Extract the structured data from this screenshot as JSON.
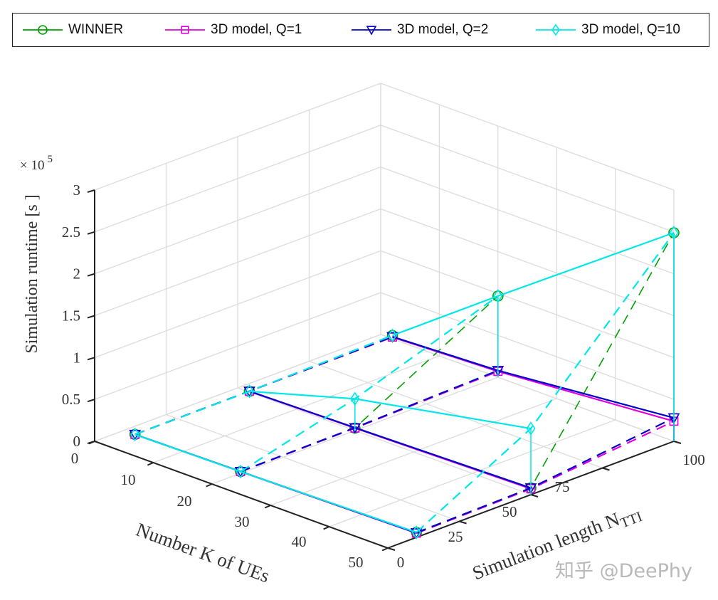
{
  "chart_data": {
    "type": "line3d",
    "title": "",
    "xlabel": "Number K of UEs",
    "ylabel_main": "Simulation length N",
    "ylabel_sub": "TTI",
    "zlabel": "Simulation runtime [s ]",
    "z_multiplier": "× 10",
    "z_multiplier_exp": "5",
    "xlim": [
      0,
      50
    ],
    "ylim": [
      0,
      100
    ],
    "zlim": [
      0,
      300000
    ],
    "x_ticks": [
      "0",
      "10",
      "20",
      "30",
      "40",
      "50"
    ],
    "y_ticks": [
      "0",
      "25",
      "50",
      "75",
      "100"
    ],
    "z_ticks": [
      "0",
      "0.5",
      "1",
      "1.5",
      "2",
      "2.5",
      "3"
    ],
    "grid": true,
    "legend_position": "top-outside",
    "K": [
      2,
      20,
      50
    ],
    "N": [
      10,
      50,
      100
    ],
    "series": [
      {
        "name": "WINNER",
        "color": "#00a000",
        "marker": "circle",
        "z_by_N": [
          [
            500,
            2000,
            6000
          ],
          [
            1000,
            3000,
            8000
          ],
          [
            4000,
            97000,
            249000
          ]
        ]
      },
      {
        "name": "3D model, Q=1",
        "color": "#e000e0",
        "marker": "square",
        "z_by_N": [
          [
            500,
            2000,
            5000
          ],
          [
            1000,
            3000,
            7000
          ],
          [
            2000,
            7000,
            24000
          ]
        ]
      },
      {
        "name": "3D model, Q=2",
        "color": "#0000c8",
        "marker": "triangle-down",
        "z_by_N": [
          [
            600,
            2200,
            5500
          ],
          [
            1200,
            3500,
            8000
          ],
          [
            2500,
            8000,
            28000
          ]
        ]
      },
      {
        "name": "3D model, Q=10",
        "color": "#00e8e8",
        "marker": "diamond",
        "z_by_N": [
          [
            500,
            2000,
            6000
          ],
          [
            1000,
            38000,
            79000
          ],
          [
            4000,
            97000,
            249000
          ]
        ]
      }
    ]
  },
  "watermark": "知乎 @DeePhy"
}
